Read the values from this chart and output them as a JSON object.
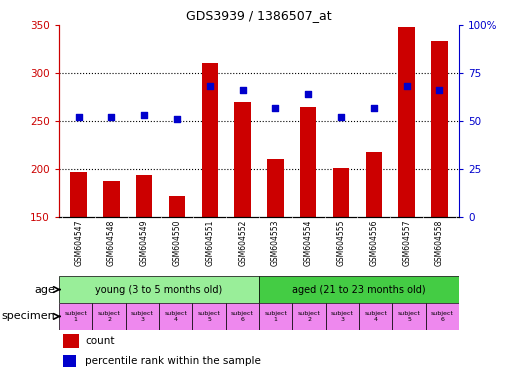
{
  "title": "GDS3939 / 1386507_at",
  "samples": [
    "GSM604547",
    "GSM604548",
    "GSM604549",
    "GSM604550",
    "GSM604551",
    "GSM604552",
    "GSM604553",
    "GSM604554",
    "GSM604555",
    "GSM604556",
    "GSM604557",
    "GSM604558"
  ],
  "count_values": [
    197,
    187,
    194,
    172,
    310,
    270,
    210,
    265,
    201,
    218,
    348,
    333
  ],
  "percentile_values": [
    52,
    52,
    53,
    51,
    68,
    66,
    57,
    64,
    52,
    57,
    68,
    66
  ],
  "ylim_left": [
    150,
    350
  ],
  "ylim_right": [
    0,
    100
  ],
  "yticks_left": [
    150,
    200,
    250,
    300,
    350
  ],
  "yticks_right": [
    0,
    25,
    50,
    75,
    100
  ],
  "bar_color": "#cc0000",
  "dot_color": "#0000cc",
  "age_groups": [
    {
      "label": "young (3 to 5 months old)",
      "start": 0,
      "end": 6,
      "color": "#99ee99"
    },
    {
      "label": "aged (21 to 23 months old)",
      "start": 6,
      "end": 12,
      "color": "#44cc44"
    }
  ],
  "specimen_labels": [
    "subject\n1",
    "subject\n2",
    "subject\n3",
    "subject\n4",
    "subject\n5",
    "subject\n6",
    "subject\n1",
    "subject\n2",
    "subject\n3",
    "subject\n4",
    "subject\n5",
    "subject\n6"
  ],
  "specimen_colors": [
    "#dd88dd",
    "#dd88dd",
    "#dd88dd",
    "#dd88dd",
    "#ee55ee",
    "#ee55ee",
    "#dd88dd",
    "#dd88dd",
    "#dd88dd",
    "#dd88dd",
    "#dd88dd",
    "#dd88dd"
  ],
  "age_label": "age",
  "specimen_label": "specimen",
  "legend_count": "count",
  "legend_percentile": "percentile rank within the sample",
  "bg_color": "#ffffff",
  "tick_label_color_left": "#cc0000",
  "tick_label_color_right": "#0000cc",
  "xlabel_bg": "#cccccc",
  "bar_width": 0.5,
  "grid_yticks": [
    200,
    250,
    300
  ]
}
